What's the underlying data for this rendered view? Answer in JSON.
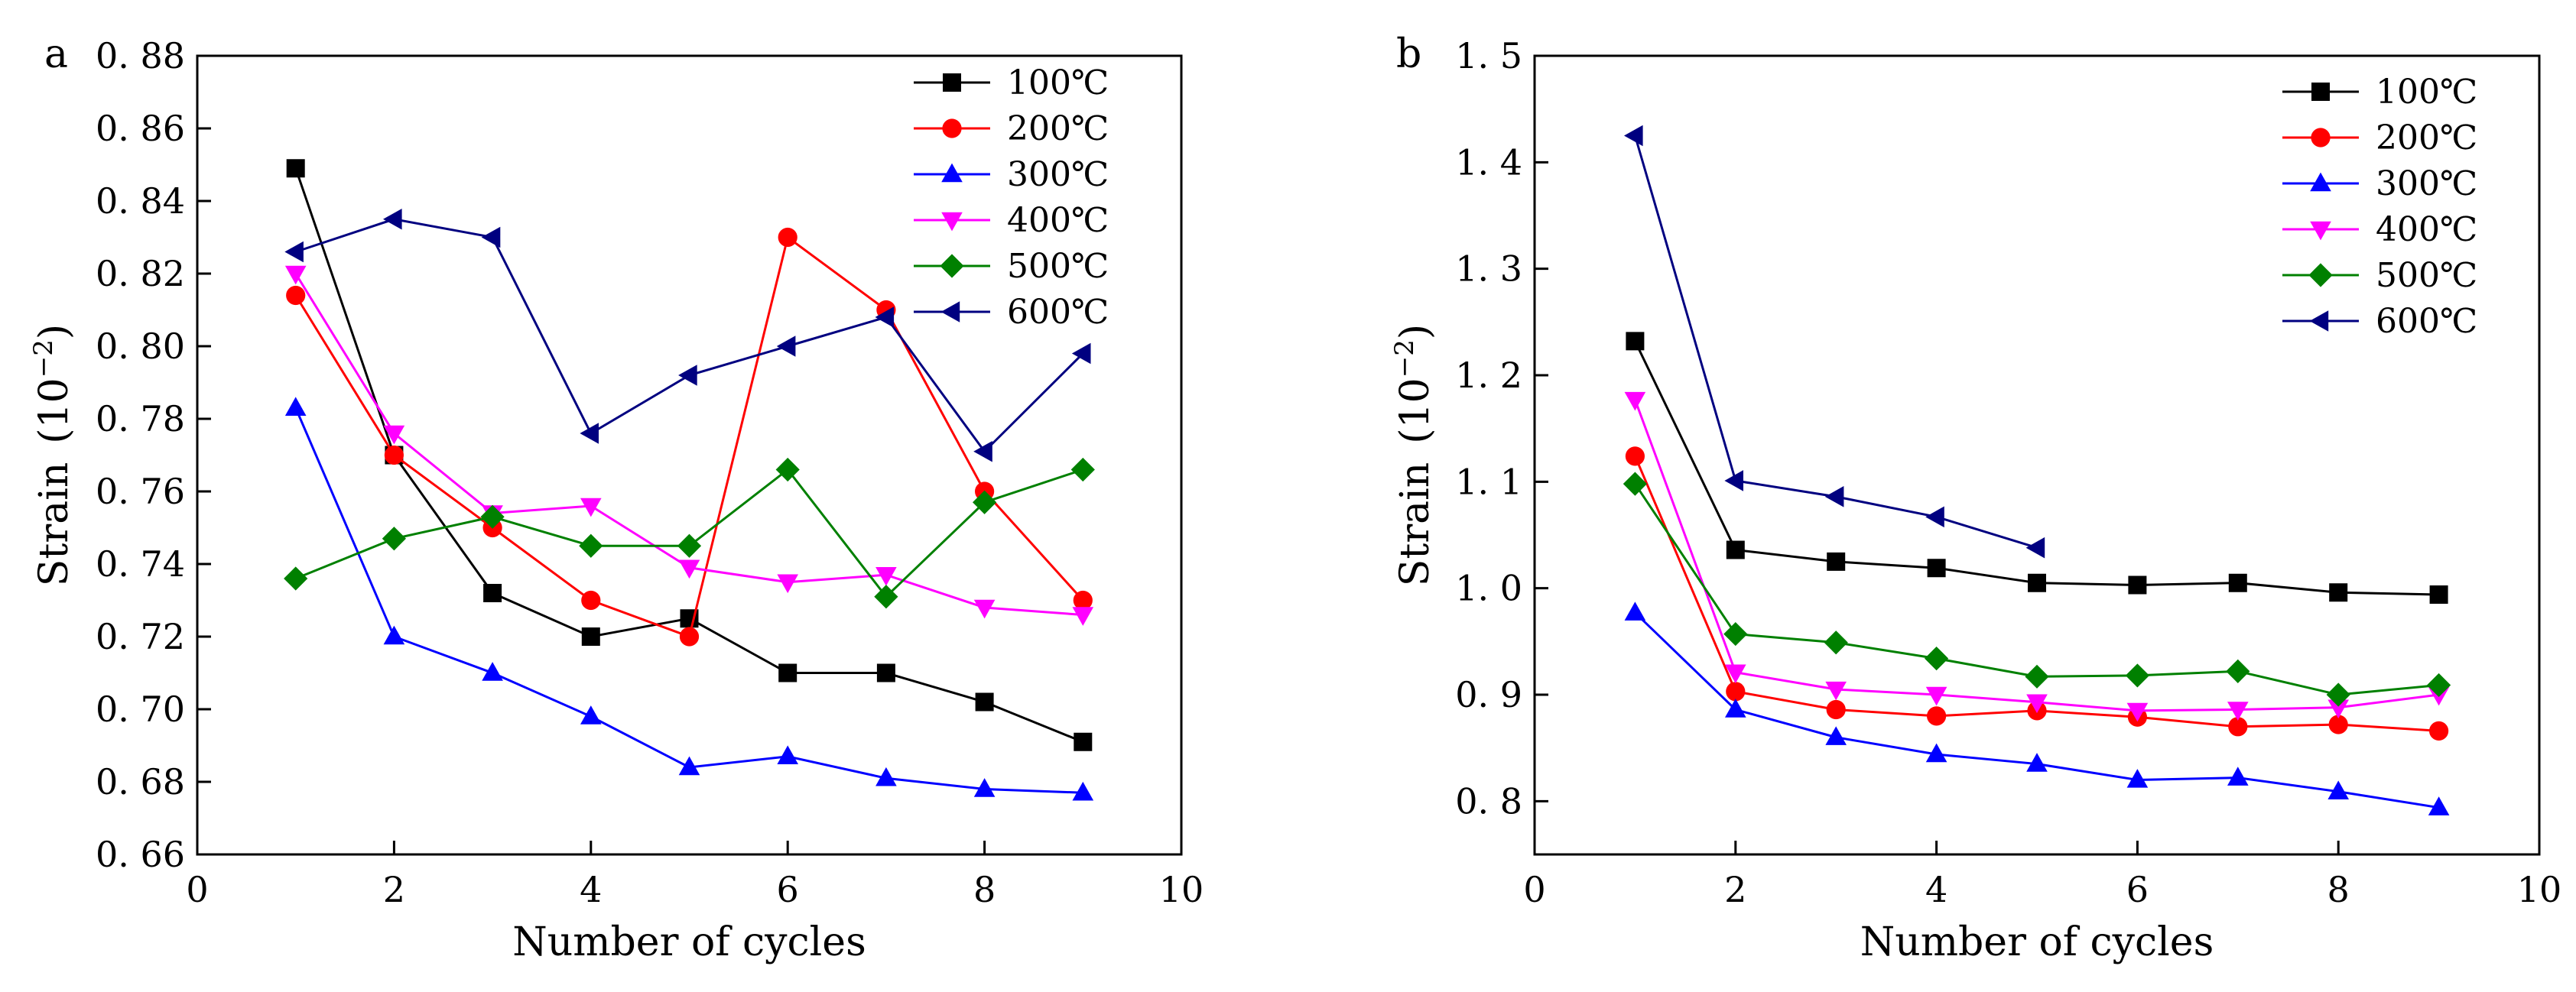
{
  "chart_data": [
    {
      "type": "line",
      "panel_label": "a",
      "xlabel": "Number of cycles",
      "ylabel": "Strain",
      "ylabel_unit": "(10",
      "ylabel_exp": "−2",
      "ylabel_close": ")",
      "xlim": [
        0,
        10
      ],
      "ylim": [
        0.66,
        0.88
      ],
      "xticks": [
        0,
        2,
        4,
        6,
        8,
        10
      ],
      "xtick_labels": [
        "0",
        "2",
        "4",
        "6",
        "8",
        "10"
      ],
      "yticks": [
        0.66,
        0.68,
        0.7,
        0.72,
        0.74,
        0.76,
        0.78,
        0.8,
        0.82,
        0.84,
        0.86,
        0.88
      ],
      "ytick_labels": [
        "0. 66",
        "0. 68",
        "0. 70",
        "0. 72",
        "0. 74",
        "0. 76",
        "0. 78",
        "0. 80",
        "0. 82",
        "0. 84",
        "0. 86",
        "0. 88"
      ],
      "grid": false,
      "legend_position": "top-right",
      "x": [
        1,
        2,
        3,
        4,
        5,
        6,
        7,
        8,
        9
      ],
      "series": [
        {
          "name": "100℃",
          "color": "#000000",
          "marker": "square",
          "values": [
            0.849,
            0.77,
            0.732,
            0.72,
            0.725,
            0.71,
            0.71,
            0.702,
            0.691
          ]
        },
        {
          "name": "200℃",
          "color": "#ff0000",
          "marker": "circle",
          "values": [
            0.814,
            0.77,
            0.75,
            0.73,
            0.72,
            0.83,
            0.81,
            0.76,
            0.73
          ]
        },
        {
          "name": "300℃",
          "color": "#0000ff",
          "marker": "triangle-up",
          "values": [
            0.783,
            0.72,
            0.71,
            0.698,
            0.684,
            0.687,
            0.681,
            0.678,
            0.677
          ]
        },
        {
          "name": "400℃",
          "color": "#ff00ff",
          "marker": "triangle-down",
          "values": [
            0.82,
            0.776,
            0.754,
            0.756,
            0.739,
            0.735,
            0.737,
            0.728,
            0.726
          ]
        },
        {
          "name": "500℃",
          "color": "#008000",
          "marker": "diamond",
          "values": [
            0.736,
            0.747,
            0.753,
            0.745,
            0.745,
            0.766,
            0.731,
            0.757,
            0.766
          ]
        },
        {
          "name": "600℃",
          "color": "#000080",
          "marker": "triangle-left",
          "values": [
            0.826,
            0.835,
            0.83,
            0.776,
            0.792,
            0.8,
            0.808,
            0.771,
            0.798
          ]
        }
      ]
    },
    {
      "type": "line",
      "panel_label": "b",
      "xlabel": "Number of cycles",
      "ylabel": "Strain",
      "ylabel_unit": "(10",
      "ylabel_exp": "−2",
      "ylabel_close": ")",
      "xlim": [
        0,
        10
      ],
      "ylim": [
        0.75,
        1.5
      ],
      "xticks": [
        0,
        2,
        4,
        6,
        8,
        10
      ],
      "xtick_labels": [
        "0",
        "2",
        "4",
        "6",
        "8",
        "10"
      ],
      "yticks": [
        0.8,
        0.9,
        1.0,
        1.1,
        1.2,
        1.3,
        1.4,
        1.5
      ],
      "ytick_labels": [
        "0. 8",
        "0. 9",
        "1. 0",
        "1. 1",
        "1. 2",
        "1. 3",
        "1. 4",
        "1. 5"
      ],
      "grid": false,
      "legend_position": "top-right",
      "x": [
        1,
        2,
        3,
        4,
        5,
        6,
        7,
        8,
        9
      ],
      "series": [
        {
          "name": "100℃",
          "color": "#000000",
          "marker": "square",
          "values": [
            1.232,
            1.036,
            1.025,
            1.019,
            1.005,
            1.003,
            1.005,
            0.996,
            0.994
          ]
        },
        {
          "name": "200℃",
          "color": "#ff0000",
          "marker": "circle",
          "values": [
            1.124,
            0.903,
            0.886,
            0.88,
            0.885,
            0.879,
            0.87,
            0.872,
            0.866
          ]
        },
        {
          "name": "300℃",
          "color": "#0000ff",
          "marker": "triangle-up",
          "values": [
            0.977,
            0.886,
            0.86,
            0.844,
            0.835,
            0.82,
            0.822,
            0.809,
            0.794
          ]
        },
        {
          "name": "400℃",
          "color": "#ff00ff",
          "marker": "triangle-down",
          "values": [
            1.177,
            0.921,
            0.905,
            0.9,
            0.893,
            0.885,
            0.886,
            0.888,
            0.9
          ]
        },
        {
          "name": "500℃",
          "color": "#008000",
          "marker": "diamond",
          "values": [
            1.098,
            0.957,
            0.949,
            0.934,
            0.917,
            0.918,
            0.922,
            0.9,
            0.909
          ]
        },
        {
          "name": "600℃",
          "color": "#000080",
          "marker": "triangle-left",
          "x": [
            1,
            2,
            3,
            4,
            5
          ],
          "values": [
            1.425,
            1.101,
            1.086,
            1.067,
            1.038
          ]
        }
      ]
    }
  ]
}
